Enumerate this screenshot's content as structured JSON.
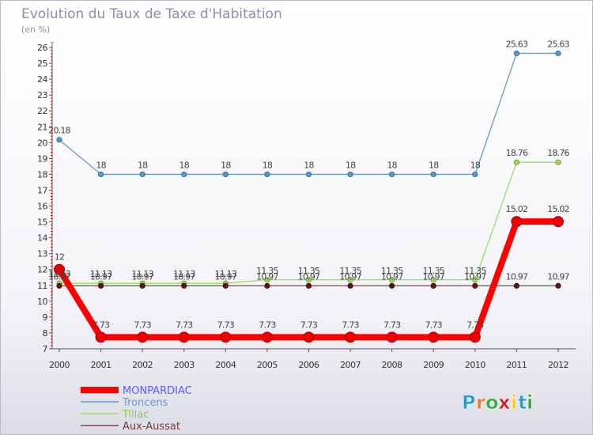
{
  "chart_data": {
    "type": "line",
    "title": "Evolution du Taux de Taxe d'Habitation",
    "subtitle": "(en %)",
    "xlabel": "",
    "ylabel": "(en %)",
    "ylim": [
      7,
      26
    ],
    "yticks": [
      "7",
      "8",
      "9",
      "10",
      "11",
      "12",
      "13",
      "14",
      "15",
      "16",
      "17",
      "18",
      "19",
      "20",
      "21",
      "22",
      "23",
      "24",
      "25",
      "26"
    ],
    "x": [
      "2000",
      "2001",
      "2002",
      "2003",
      "2004",
      "2005",
      "2006",
      "2007",
      "2008",
      "2009",
      "2010",
      "2011",
      "2012"
    ],
    "grid": false,
    "legend_position": "bottom-left",
    "series": [
      {
        "name": "MONPARDIAC",
        "color": "#ff0000",
        "legend_color": "#5c5cff",
        "values": [
          12,
          7.73,
          7.73,
          7.73,
          7.73,
          7.73,
          7.73,
          7.73,
          7.73,
          7.73,
          7.73,
          15.02,
          15.02
        ],
        "labels": [
          "12",
          "7.73",
          "7.73",
          "7.73",
          "7.73",
          "7.73",
          "7.73",
          "7.73",
          "7.73",
          "7.73",
          "7.73",
          "15.02",
          "15.02"
        ]
      },
      {
        "name": "Troncens",
        "color": "#6699cc",
        "legend_color": "#6699cc",
        "values": [
          20.18,
          18,
          18,
          18,
          18,
          18,
          18,
          18,
          18,
          18,
          18,
          25.63,
          25.63
        ],
        "labels": [
          "20.18",
          "18",
          "18",
          "18",
          "18",
          "18",
          "18",
          "18",
          "18",
          "18",
          "18",
          "25.63",
          "25.63"
        ]
      },
      {
        "name": "Tillac",
        "color": "#99dd66",
        "legend_color": "#88cc55",
        "values": [
          11.13,
          11.13,
          11.13,
          11.13,
          11.13,
          11.35,
          11.35,
          11.35,
          11.35,
          11.35,
          11.35,
          18.76,
          18.76
        ],
        "labels": [
          "11.13",
          "11.13",
          "11.13",
          "11.13",
          "11.13",
          "11.35",
          "11.35",
          "11.35",
          "11.35",
          "11.35",
          "11.35",
          "18.76",
          "18.76"
        ]
      },
      {
        "name": "Aux-Aussat",
        "color": "#884444",
        "legend_color": "#7a3a3a",
        "values": [
          10.97,
          10.97,
          10.97,
          10.97,
          10.97,
          10.97,
          10.97,
          10.97,
          10.97,
          10.97,
          10.97,
          10.97,
          10.97
        ],
        "labels": [
          "10.97",
          "10.97",
          "10.97",
          "10.97",
          "10.97",
          "10.97",
          "10.97",
          "10.97",
          "10.97",
          "10.97",
          "10.97",
          "10.97",
          "10.97"
        ]
      }
    ]
  },
  "logo": {
    "text": "Proxiti",
    "letters": [
      "P",
      "r",
      "o",
      "x",
      "i",
      "t",
      "i"
    ]
  }
}
